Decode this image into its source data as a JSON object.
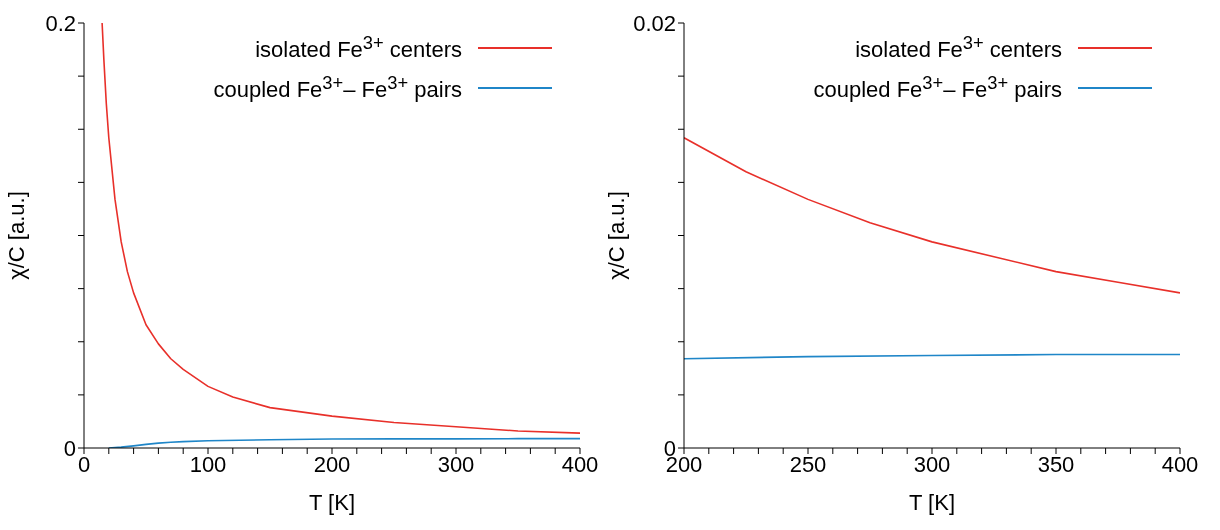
{
  "chart_data": [
    {
      "type": "line",
      "xlabel": "T [K]",
      "ylabel": "χ/C [a.u.]",
      "xlim": [
        0,
        400
      ],
      "ylim": [
        0,
        0.2
      ],
      "xticks": [
        0,
        {
          "value": 20,
          "label": null
        },
        {
          "value": 40,
          "label": null
        },
        {
          "value": 60,
          "label": null
        },
        {
          "value": 80,
          "label": null
        },
        100,
        {
          "value": 120,
          "label": null
        },
        {
          "value": 140,
          "label": null
        },
        {
          "value": 160,
          "label": null
        },
        {
          "value": 180,
          "label": null
        },
        200,
        {
          "value": 220,
          "label": null
        },
        {
          "value": 240,
          "label": null
        },
        {
          "value": 260,
          "label": null
        },
        {
          "value": 280,
          "label": null
        },
        300,
        {
          "value": 320,
          "label": null
        },
        {
          "value": 340,
          "label": null
        },
        {
          "value": 360,
          "label": null
        },
        {
          "value": 380,
          "label": null
        },
        400
      ],
      "yticks": [
        0,
        {
          "value": 0.025,
          "label": null
        },
        {
          "value": 0.05,
          "label": null
        },
        {
          "value": 0.075,
          "label": null
        },
        {
          "value": 0.1,
          "label": null
        },
        {
          "value": 0.125,
          "label": null
        },
        {
          "value": 0.15,
          "label": null
        },
        {
          "value": 0.175,
          "label": null
        },
        0.2
      ],
      "legend": "top right",
      "grid": false,
      "marker": "none",
      "line_style": "solid",
      "series": [
        {
          "name": "isolated Fe$^{3+}$ centers",
          "color": "#e8302a",
          "x": [
            14.6,
            16,
            18,
            20,
            25,
            30,
            35,
            40,
            50,
            60,
            70,
            80,
            100,
            120,
            150,
            200,
            250,
            300,
            350,
            400
          ],
          "values": [
            0.2,
            0.183,
            0.162,
            0.146,
            0.117,
            0.097,
            0.083,
            0.073,
            0.058,
            0.049,
            0.042,
            0.037,
            0.029,
            0.024,
            0.019,
            0.015,
            0.012,
            0.01,
            0.008,
            0.007
          ]
        },
        {
          "name": "coupled Fe$^{3+}$– Fe$^{3+}$ pairs",
          "color": "#1f86c8",
          "x": [
            20,
            30,
            40,
            50,
            60,
            70,
            80,
            100,
            150,
            200,
            250,
            300,
            350,
            400
          ],
          "values": [
            0,
            0.0004,
            0.001,
            0.0017,
            0.0023,
            0.0027,
            0.003,
            0.0034,
            0.0039,
            0.0042,
            0.0043,
            0.0043,
            0.0044,
            0.0044
          ]
        }
      ]
    },
    {
      "type": "line",
      "xlabel": "T [K]",
      "ylabel": "χ/C [a.u.]",
      "xlim": [
        200,
        400
      ],
      "ylim": [
        0,
        0.02
      ],
      "xticks": [
        200,
        {
          "value": 210,
          "label": null
        },
        {
          "value": 220,
          "label": null
        },
        {
          "value": 230,
          "label": null
        },
        {
          "value": 240,
          "label": null
        },
        250,
        {
          "value": 260,
          "label": null
        },
        {
          "value": 270,
          "label": null
        },
        {
          "value": 280,
          "label": null
        },
        {
          "value": 290,
          "label": null
        },
        300,
        {
          "value": 310,
          "label": null
        },
        {
          "value": 320,
          "label": null
        },
        {
          "value": 330,
          "label": null
        },
        {
          "value": 340,
          "label": null
        },
        350,
        {
          "value": 360,
          "label": null
        },
        {
          "value": 370,
          "label": null
        },
        {
          "value": 380,
          "label": null
        },
        {
          "value": 390,
          "label": null
        },
        400
      ],
      "yticks": [
        0,
        {
          "value": 0.0025,
          "label": null
        },
        {
          "value": 0.005,
          "label": null
        },
        {
          "value": 0.0075,
          "label": null
        },
        {
          "value": 0.01,
          "label": null
        },
        {
          "value": 0.0125,
          "label": null
        },
        {
          "value": 0.015,
          "label": null
        },
        {
          "value": 0.0175,
          "label": null
        },
        0.02
      ],
      "legend": "top right",
      "grid": false,
      "marker": "none",
      "line_style": "solid",
      "series": [
        {
          "name": "isolated Fe$^{3+}$ centers",
          "color": "#e8302a",
          "x": [
            200,
            225,
            250,
            275,
            300,
            325,
            350,
            375,
            400
          ],
          "values": [
            0.0146,
            0.013,
            0.0117,
            0.0106,
            0.0097,
            0.009,
            0.0083,
            0.0078,
            0.0073
          ]
        },
        {
          "name": "coupled Fe$^{3+}$– Fe$^{3+}$ pairs",
          "color": "#1f86c8",
          "x": [
            200,
            250,
            300,
            350,
            400
          ],
          "values": [
            0.0042,
            0.0043,
            0.00435,
            0.0044,
            0.0044
          ]
        }
      ]
    }
  ]
}
